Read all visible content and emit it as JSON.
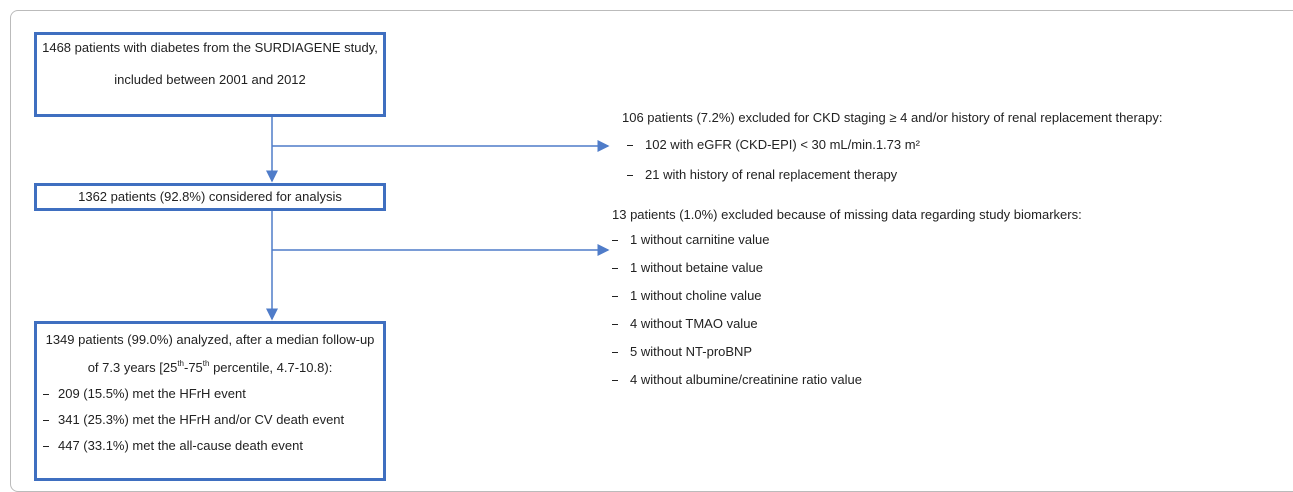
{
  "box1": {
    "lines": [
      "1468 patients with diabetes from the SURDIAGENE study,",
      "included between 2001 and 2012"
    ]
  },
  "exclusion1": {
    "header": "106 patients (7.2%) excluded for CKD staging ≥ 4 and/or history of renal replacement therapy:",
    "items": [
      "102 with eGFR (CKD-EPI) < 30 mL/min.1.73 m²",
      "21 with history of renal replacement therapy"
    ]
  },
  "box2": {
    "text": "1362 patients (92.8%) considered for analysis"
  },
  "exclusion2": {
    "header": "13 patients (1.0%) excluded because of missing data regarding study biomarkers:",
    "items": [
      "1 without carnitine value",
      "1 without betaine value",
      "1 without choline value",
      "4 without TMAO value",
      "5 without NT-proBNP",
      "4 without albumine/creatinine ratio value"
    ]
  },
  "box3": {
    "line1": "1349 patients (99.0%) analyzed, after a median follow-up",
    "line2": [
      "of 7.3 years [25",
      "th",
      "-75",
      "th",
      " percentile, 4.7-10.8):"
    ],
    "items": [
      "209 (15.5%) met the HFrH event",
      "341 (25.3%) met the HFrH and/or CV death event",
      "447 (33.1%) met the all-cause death event"
    ]
  }
}
